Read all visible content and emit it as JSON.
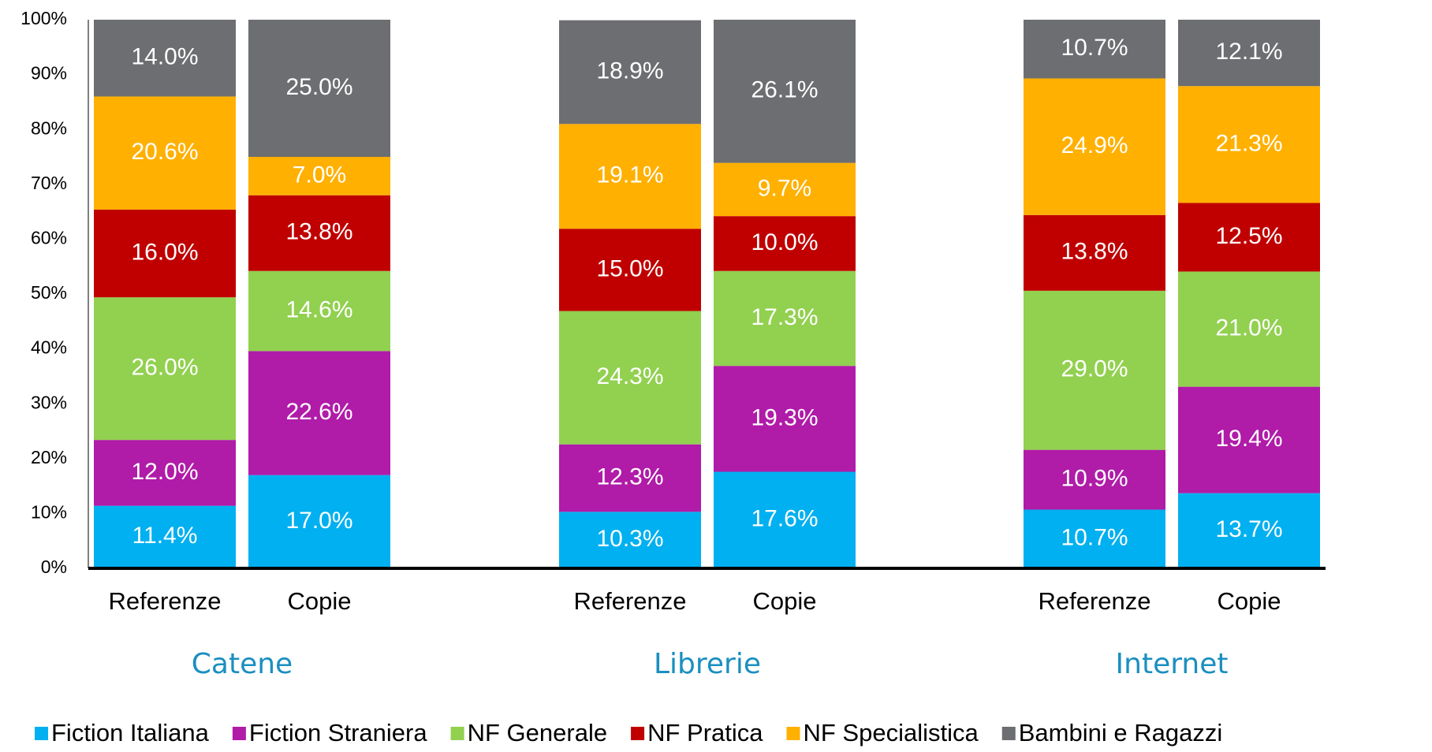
{
  "chart_data": {
    "type": "stacked_bar",
    "categories": [
      "Referenze",
      "Copie",
      "Referenze",
      "Copie",
      "Referenze",
      "Copie"
    ],
    "groups": [
      "Catene",
      "Librerie",
      "Internet"
    ],
    "series": [
      {
        "name": "Fiction Italiana",
        "color": "#00b0f0",
        "values": [
          11.4,
          17.0,
          10.3,
          17.6,
          10.7,
          13.7
        ],
        "value_labels": [
          "11.4%",
          "17.0%",
          "10.3%",
          "17.6%",
          "10.7%",
          "13.7%"
        ]
      },
      {
        "name": "Fiction Straniera",
        "color": "#b01ba8",
        "values": [
          12.0,
          22.6,
          12.3,
          19.3,
          10.9,
          19.4
        ],
        "value_labels": [
          "12.0%",
          "22.6%",
          "12.3%",
          "19.3%",
          "10.9%",
          "19.4%"
        ]
      },
      {
        "name": "NF Generale",
        "color": "#92d050",
        "values": [
          26.0,
          14.6,
          24.3,
          17.3,
          29.0,
          21.0
        ],
        "value_labels": [
          "26.0%",
          "14.6%",
          "24.3%",
          "17.3%",
          "29.0%",
          "21.0%"
        ]
      },
      {
        "name": "NF Pratica",
        "color": "#c00000",
        "values": [
          16.0,
          13.8,
          15.0,
          10.0,
          13.8,
          12.5
        ],
        "value_labels": [
          "16.0%",
          "13.8%",
          "15.0%",
          "10.0%",
          "13.8%",
          "12.5%"
        ]
      },
      {
        "name": "NF Specialistica",
        "color": "#ffb000",
        "values": [
          20.6,
          7.0,
          19.1,
          9.7,
          24.9,
          21.3
        ],
        "value_labels": [
          "20.6%",
          "7.0%",
          "19.1%",
          "9.7%",
          "24.9%",
          "21.3%"
        ]
      },
      {
        "name": "Bambini e Ragazzi",
        "color": "#6d6e71",
        "values": [
          14.0,
          25.0,
          18.9,
          26.1,
          10.7,
          12.1
        ],
        "value_labels": [
          "14.0%",
          "25.0%",
          "18.9%",
          "26.1%",
          "10.7%",
          "12.1%"
        ]
      }
    ],
    "ylim": [
      0,
      100
    ],
    "yticks": [
      {
        "value": 0,
        "label": "0%"
      },
      {
        "value": 10,
        "label": "10%"
      },
      {
        "value": 20,
        "label": "20%"
      },
      {
        "value": 30,
        "label": "30%"
      },
      {
        "value": 40,
        "label": "40%"
      },
      {
        "value": 50,
        "label": "50%"
      },
      {
        "value": 60,
        "label": "60%"
      },
      {
        "value": 70,
        "label": "70%"
      },
      {
        "value": 80,
        "label": "80%"
      },
      {
        "value": 90,
        "label": "90%"
      },
      {
        "value": 100,
        "label": "100%"
      }
    ],
    "legend": "bottom",
    "grid": false
  }
}
